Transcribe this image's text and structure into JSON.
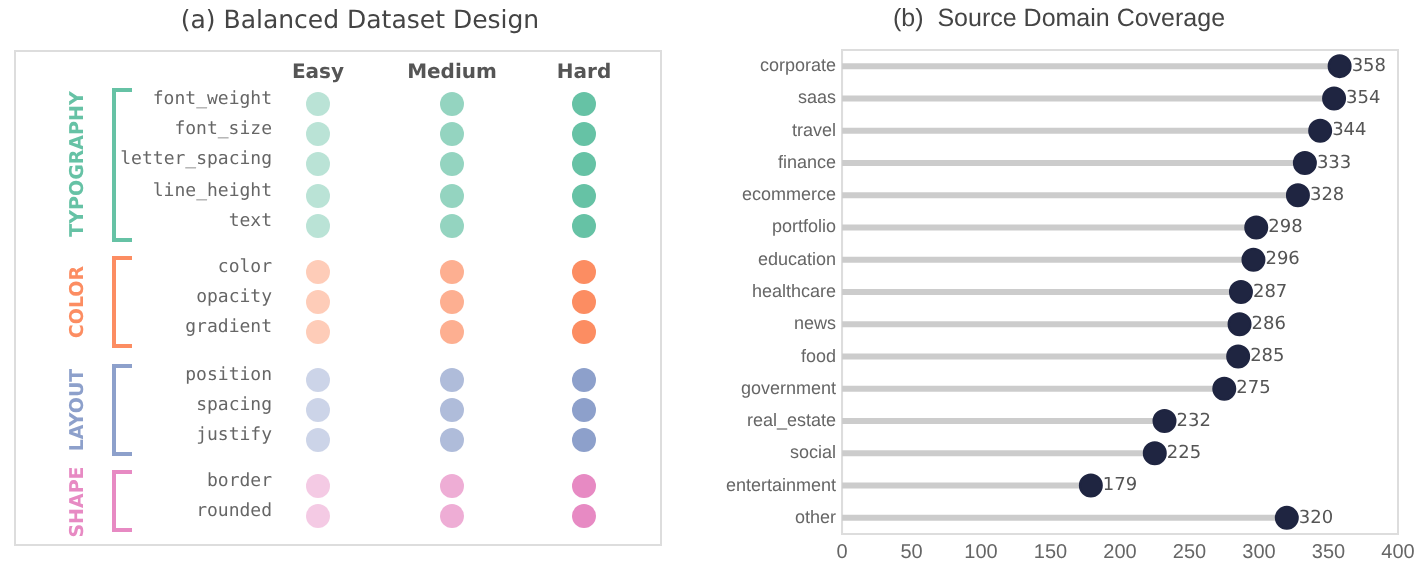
{
  "chart_data": [
    {
      "type": "other",
      "title": "(a)  Balanced Dataset Design",
      "categories": [
        "Easy",
        "Medium",
        "Hard"
      ],
      "y_categories": [
        "font_weight",
        "font_size",
        "letter_spacing",
        "line_height",
        "text",
        "color",
        "opacity",
        "gradient",
        "position",
        "spacing",
        "justify",
        "border",
        "rounded"
      ],
      "annotations": [
        "TYPOGRAPHY",
        "COLOR",
        "LAYOUT",
        "SHAPE"
      ]
    },
    {
      "type": "lollipop",
      "title": "(b)  Source Domain Coverage",
      "orientation": "horizontal",
      "categories": [
        "corporate",
        "saas",
        "travel",
        "finance",
        "ecommerce",
        "portfolio",
        "education",
        "healthcare",
        "news",
        "food",
        "government",
        "real_estate",
        "social",
        "entertainment",
        "other"
      ],
      "values": [
        358,
        354,
        344,
        333,
        328,
        298,
        296,
        287,
        286,
        285,
        275,
        232,
        225,
        179,
        320
      ],
      "color": "#1f2541",
      "xlim": [
        0,
        400
      ],
      "xticks": [
        0,
        50,
        100,
        150,
        200,
        250,
        300,
        350,
        400
      ],
      "data_labels": true,
      "grid": false,
      "legend": false
    }
  ]
}
